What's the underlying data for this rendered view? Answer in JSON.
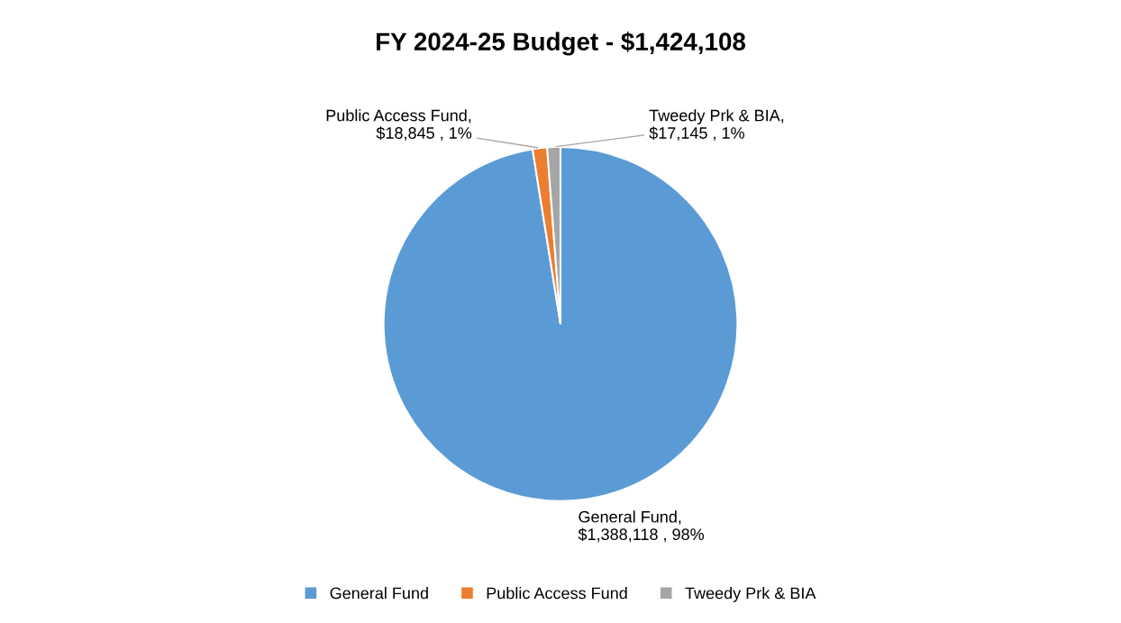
{
  "chart_data": {
    "type": "pie",
    "title": "FY 2024-25 Budget - $1,424,108",
    "categories": [
      "General Fund",
      "Public Access Fund",
      "Tweedy Prk & BIA"
    ],
    "values": [
      1388118,
      18845,
      17145
    ],
    "colors": [
      "#5b9bd5",
      "#ed7d31",
      "#a5a5a5"
    ],
    "value_labels": [
      "General Fund,\n$1,388,118 , 98%",
      "Public Access Fund,\n$18,845 , 1%",
      "Tweedy Prk & BIA,\n$17,145 , 1%"
    ],
    "legend": "bottom"
  }
}
